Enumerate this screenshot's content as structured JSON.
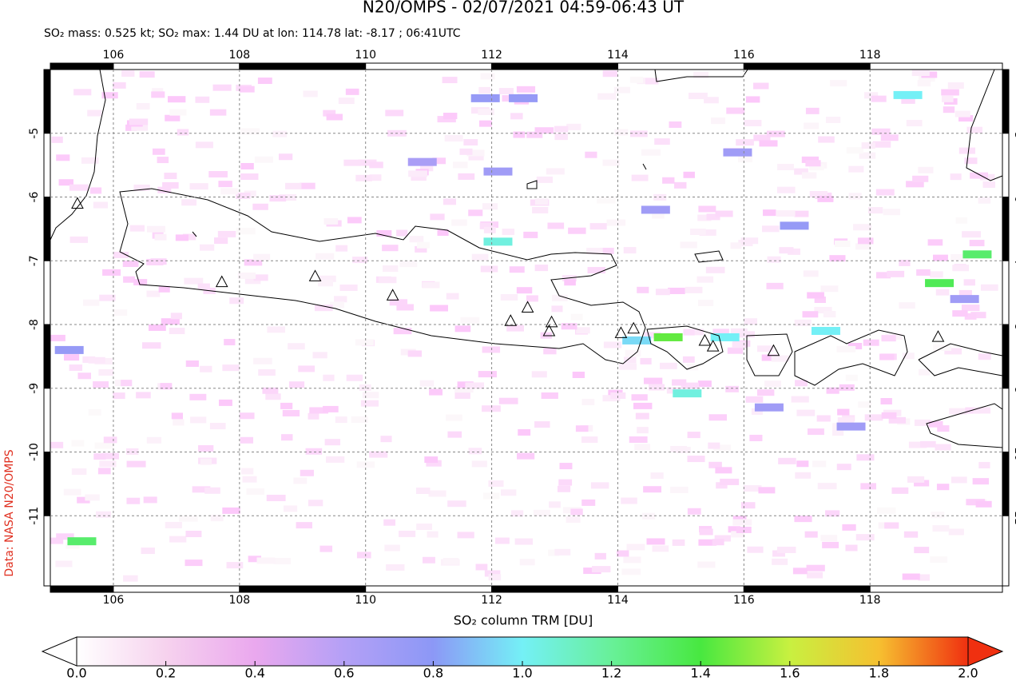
{
  "chart_data": {
    "type": "map",
    "title": "N20/OMPS - 02/07/2021 04:59-06:43 UT",
    "subtitle": "SO₂ mass: 0.525 kt; SO₂ max: 1.44 DU at lon: 114.78 lat: -8.17 ; 06:41UTC",
    "source": "Data: NASA N20/OMPS",
    "xlim": [
      105,
      120.1
    ],
    "ylim": [
      -12.1,
      -4
    ],
    "xticks": [
      106,
      108,
      110,
      112,
      114,
      116,
      118
    ],
    "yticks": [
      -5,
      -6,
      -7,
      -8,
      -9,
      -10,
      -11
    ],
    "grid": true,
    "pixels": [
      {
        "lon": 114.8,
        "lat": -8.2,
        "value": 1.44
      },
      {
        "lon": 115.1,
        "lat": -9.08,
        "value": 1.05
      },
      {
        "lon": 112.1,
        "lat": -6.7,
        "value": 1.05
      },
      {
        "lon": 119.1,
        "lat": -7.35,
        "value": 1.35
      },
      {
        "lon": 119.7,
        "lat": -6.9,
        "value": 1.3
      },
      {
        "lon": 105.5,
        "lat": -11.4,
        "value": 1.3
      },
      {
        "lon": 118.6,
        "lat": -4.4,
        "value": 1.0
      },
      {
        "lon": 115.7,
        "lat": -8.2,
        "value": 1.0
      },
      {
        "lon": 117.3,
        "lat": -8.1,
        "value": 1.0
      },
      {
        "lon": 114.3,
        "lat": -8.25,
        "value": 0.95
      },
      {
        "lon": 116.8,
        "lat": -6.45,
        "value": 0.75
      },
      {
        "lon": 115.9,
        "lat": -5.3,
        "value": 0.7
      },
      {
        "lon": 111.9,
        "lat": -4.45,
        "value": 0.75
      },
      {
        "lon": 112.5,
        "lat": -4.45,
        "value": 0.75
      },
      {
        "lon": 114.6,
        "lat": -6.2,
        "value": 0.7
      },
      {
        "lon": 116.4,
        "lat": -9.3,
        "value": 0.7
      },
      {
        "lon": 117.7,
        "lat": -9.6,
        "value": 0.7
      },
      {
        "lon": 119.5,
        "lat": -7.6,
        "value": 0.7
      },
      {
        "lon": 105.3,
        "lat": -8.4,
        "value": 0.75
      },
      {
        "lon": 110.9,
        "lat": -5.45,
        "value": 0.65
      },
      {
        "lon": 112.1,
        "lat": -5.6,
        "value": 0.7
      }
    ],
    "volcanoes": [
      {
        "lon": 105.43,
        "lat": -6.1
      },
      {
        "lon": 107.72,
        "lat": -7.33
      },
      {
        "lon": 109.2,
        "lat": -7.24
      },
      {
        "lon": 110.43,
        "lat": -7.54
      },
      {
        "lon": 112.3,
        "lat": -7.94
      },
      {
        "lon": 112.57,
        "lat": -7.73
      },
      {
        "lon": 112.95,
        "lat": -7.96
      },
      {
        "lon": 112.91,
        "lat": -8.1
      },
      {
        "lon": 114.05,
        "lat": -8.13
      },
      {
        "lon": 114.25,
        "lat": -8.06
      },
      {
        "lon": 115.38,
        "lat": -8.25
      },
      {
        "lon": 115.51,
        "lat": -8.34
      },
      {
        "lon": 116.47,
        "lat": -8.41
      },
      {
        "lon": 119.08,
        "lat": -8.19
      }
    ],
    "colorbar": {
      "label": "SO₂ column TRM [DU]",
      "lim": [
        0,
        2
      ],
      "colors": [
        "#ffffff",
        "#f6d2ee",
        "#eaa8ee",
        "#b4a0f6",
        "#8c98f6",
        "#74f0f6",
        "#68f098",
        "#48e840",
        "#c8f040",
        "#f6c030",
        "#f03010"
      ],
      "ticks": [
        {
          "value": 0,
          "label": "0.0"
        },
        {
          "value": 0.2,
          "label": "0.2"
        },
        {
          "value": 0.4,
          "label": "0.4"
        },
        {
          "value": 0.6,
          "label": "0.6"
        },
        {
          "value": 0.8,
          "label": "0.8"
        },
        {
          "value": 1,
          "label": "1.0"
        },
        {
          "value": 1.2,
          "label": "1.2"
        },
        {
          "value": 1.4,
          "label": "1.4"
        },
        {
          "value": 1.6,
          "label": "1.6"
        },
        {
          "value": 1.8,
          "label": "1.8"
        },
        {
          "value": 2,
          "label": "2.0"
        }
      ]
    }
  }
}
